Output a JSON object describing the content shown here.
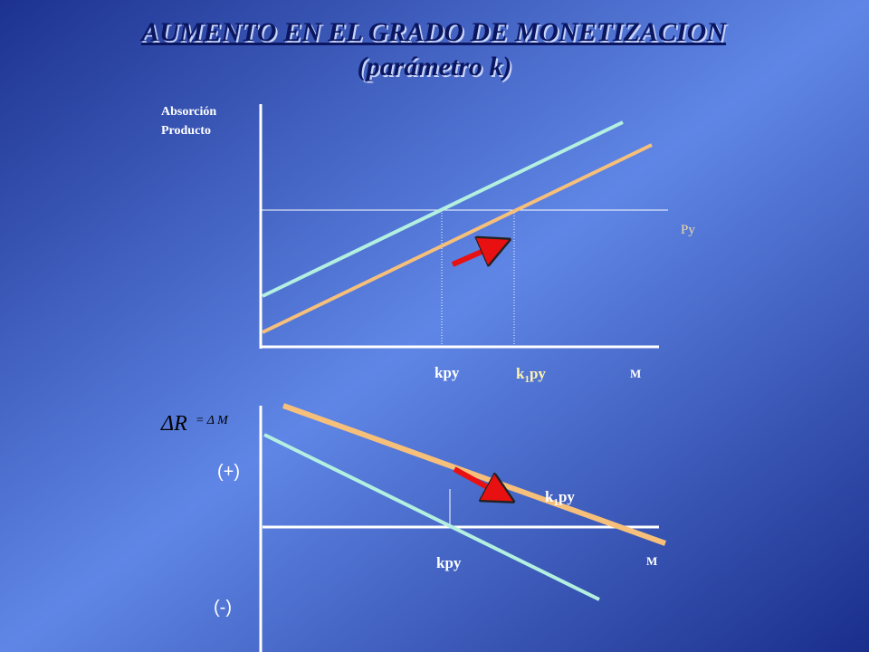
{
  "header": {
    "title": "AUMENTO EN EL GRADO DE MONETIZACION",
    "subtitle": "(parámetro k)"
  },
  "top_panel": {
    "y_label_line1": "Absorción",
    "y_label_line2": "Producto",
    "line_label": "Py",
    "x_label_kpy": "kpy",
    "x_label_k1py": [
      "k",
      "1",
      "py"
    ],
    "x_axis_label": "M"
  },
  "bottom_panel": {
    "y_label_left": "ΔR",
    "y_label_right": "= Δ M",
    "positive": "(+)",
    "negative": "(-)",
    "curve_label_k1py": [
      "k",
      "1",
      "py"
    ],
    "x_label_kpy": "kpy",
    "x_axis_label": "M"
  }
}
